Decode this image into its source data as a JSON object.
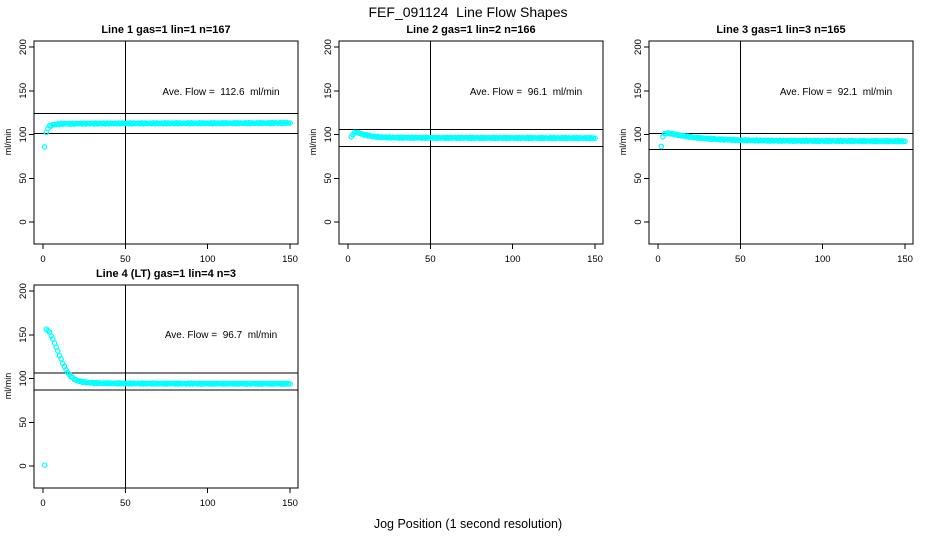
{
  "figure": {
    "title": "FEF_091124  Line Flow Shapes",
    "xlabel": "Jog Position (1 second resolution)"
  },
  "axes": {
    "x_ticks": [
      "0",
      "50",
      "100",
      "150"
    ],
    "x_tick_values": [
      0,
      50,
      100,
      150
    ],
    "y_ticks": [
      "0",
      "50",
      "100",
      "150",
      "200"
    ],
    "y_tick_values": [
      0,
      50,
      100,
      150,
      200
    ],
    "marker_color": "#00FFFF",
    "line_color": "#000000"
  },
  "chart_data": [
    {
      "type": "scatter",
      "title": "Line 1 gas=1 lin=1 n=167",
      "ylabel": "ml/min",
      "annotation": "Ave. Flow =  112.6  ml/min",
      "ave_flow": 112.6,
      "n": 167,
      "xlim": [
        0,
        150
      ],
      "ylim": [
        0,
        200
      ],
      "ref_lines": {
        "h": [
          123.9,
          101.3
        ],
        "v": [
          50
        ]
      },
      "keypoints": [
        [
          1,
          86
        ],
        [
          2,
          102
        ],
        [
          3,
          107
        ],
        [
          4,
          109.5
        ],
        [
          6,
          111
        ],
        [
          8,
          111.8
        ],
        [
          12,
          112.2
        ],
        [
          20,
          112.4
        ],
        [
          40,
          112.6
        ],
        [
          70,
          112.8
        ],
        [
          100,
          112.9
        ],
        [
          130,
          113
        ],
        [
          150,
          113.2
        ]
      ],
      "outliers": []
    },
    {
      "type": "scatter",
      "title": "Line 2 gas=1 lin=2 n=166",
      "ylabel": "ml/min",
      "annotation": "Ave. Flow =  96.1  ml/min",
      "ave_flow": 96.1,
      "n": 166,
      "xlim": [
        0,
        150
      ],
      "ylim": [
        0,
        200
      ],
      "ref_lines": {
        "h": [
          105.7,
          86.5
        ],
        "v": [
          50
        ]
      },
      "keypoints": [
        [
          2,
          97
        ],
        [
          3,
          100.5
        ],
        [
          4,
          102
        ],
        [
          5,
          102.5
        ],
        [
          7,
          101.5
        ],
        [
          9,
          100.2
        ],
        [
          12,
          98.8
        ],
        [
          15,
          97.8
        ],
        [
          20,
          96.9
        ],
        [
          30,
          96.4
        ],
        [
          50,
          96.2
        ],
        [
          80,
          96.1
        ],
        [
          120,
          96
        ],
        [
          150,
          95.9
        ]
      ],
      "outliers": []
    },
    {
      "type": "scatter",
      "title": "Line 3 gas=1 lin=3 n=165",
      "ylabel": "ml/min",
      "annotation": "Ave. Flow =  92.1  ml/min",
      "ave_flow": 92.1,
      "n": 165,
      "xlim": [
        0,
        150
      ],
      "ylim": [
        0,
        200
      ],
      "ref_lines": {
        "h": [
          101.3,
          82.9
        ],
        "v": [
          50
        ]
      },
      "keypoints": [
        [
          2,
          86
        ],
        [
          3,
          98
        ],
        [
          4,
          100.5
        ],
        [
          5,
          101.5
        ],
        [
          7,
          101.2
        ],
        [
          10,
          100.2
        ],
        [
          14,
          98.8
        ],
        [
          18,
          97.6
        ],
        [
          24,
          96.3
        ],
        [
          30,
          95.3
        ],
        [
          40,
          94.2
        ],
        [
          50,
          93.5
        ],
        [
          65,
          93
        ],
        [
          80,
          92.8
        ],
        [
          100,
          92.6
        ],
        [
          125,
          92.5
        ],
        [
          150,
          92.4
        ]
      ],
      "outliers": []
    },
    {
      "type": "scatter",
      "title": "Line 4 (LT) gas=1 lin=4 n=3",
      "ylabel": "ml/min",
      "annotation": "Ave. Flow =  96.7  ml/min",
      "ave_flow": 96.7,
      "n": 3,
      "xlim": [
        0,
        150
      ],
      "ylim": [
        0,
        200
      ],
      "ref_lines": {
        "h": [
          106.4,
          87.0
        ],
        "v": [
          50
        ]
      },
      "keypoints": [
        [
          2,
          156
        ],
        [
          3,
          155
        ],
        [
          4,
          152.5
        ],
        [
          5,
          149
        ],
        [
          6,
          145
        ],
        [
          7,
          140.5
        ],
        [
          8,
          136
        ],
        [
          9,
          131
        ],
        [
          10,
          126.5
        ],
        [
          11,
          122
        ],
        [
          12,
          117.5
        ],
        [
          13,
          113.5
        ],
        [
          14,
          110
        ],
        [
          15,
          107
        ],
        [
          16,
          104.5
        ],
        [
          17,
          102.5
        ],
        [
          18,
          100.8
        ],
        [
          19,
          99.4
        ],
        [
          20,
          98.3
        ],
        [
          22,
          96.9
        ],
        [
          24,
          96.1
        ],
        [
          27,
          95.4
        ],
        [
          30,
          95
        ],
        [
          35,
          94.7
        ],
        [
          40,
          94.5
        ],
        [
          50,
          94.3
        ],
        [
          70,
          94.2
        ],
        [
          100,
          94.1
        ],
        [
          150,
          94
        ]
      ],
      "outliers": [
        [
          1,
          1
        ]
      ]
    }
  ]
}
